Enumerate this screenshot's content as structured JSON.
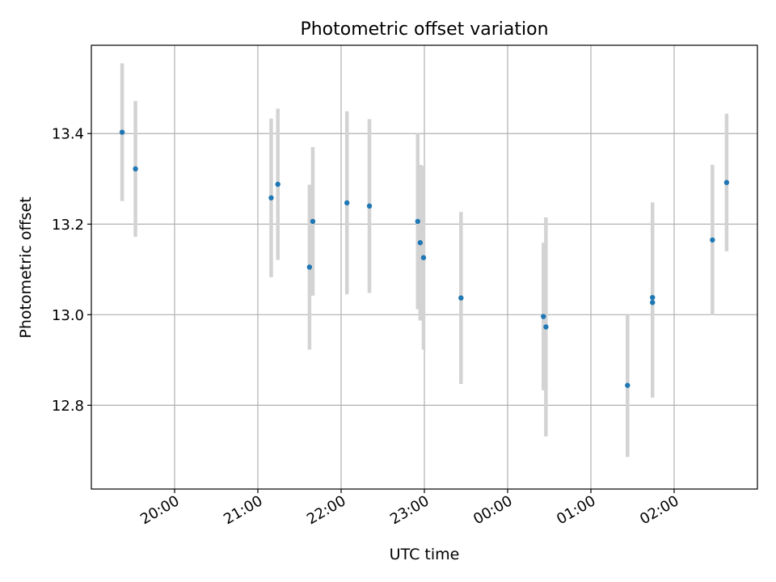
{
  "colors": {
    "point": "#1f77b4",
    "errorbar": "#d3d3d3",
    "grid": "#b0b0b0",
    "axes": "#000000"
  },
  "chart_data": {
    "type": "scatter",
    "title": "Photometric offset variation",
    "xlabel": "UTC time",
    "ylabel": "Photometric offset",
    "x_unit": "hours since 19:00 UTC",
    "xlim": [
      0.0,
      8.0
    ],
    "ylim": [
      12.615,
      13.595
    ],
    "grid": true,
    "x_ticks": [
      {
        "value": 1.0,
        "label": "20:00"
      },
      {
        "value": 2.0,
        "label": "21:00"
      },
      {
        "value": 3.0,
        "label": "22:00"
      },
      {
        "value": 4.0,
        "label": "23:00"
      },
      {
        "value": 5.0,
        "label": "00:00"
      },
      {
        "value": 6.0,
        "label": "01:00"
      },
      {
        "value": 7.0,
        "label": "02:00"
      }
    ],
    "y_ticks": [
      {
        "value": 12.8,
        "label": "12.8"
      },
      {
        "value": 13.0,
        "label": "13.0"
      },
      {
        "value": 13.2,
        "label": "13.2"
      },
      {
        "value": 13.4,
        "label": "13.4"
      }
    ],
    "series": [
      {
        "points": [
          {
            "x": 0.37,
            "y": 13.403,
            "err": 0.152
          },
          {
            "x": 0.53,
            "y": 13.322,
            "err": 0.15
          },
          {
            "x": 2.16,
            "y": 13.258,
            "err": 0.175
          },
          {
            "x": 2.24,
            "y": 13.288,
            "err": 0.167
          },
          {
            "x": 2.62,
            "y": 13.105,
            "err": 0.182
          },
          {
            "x": 2.66,
            "y": 13.206,
            "err": 0.164
          },
          {
            "x": 3.07,
            "y": 13.247,
            "err": 0.202
          },
          {
            "x": 3.34,
            "y": 13.24,
            "err": 0.192
          },
          {
            "x": 3.92,
            "y": 13.206,
            "err": 0.194
          },
          {
            "x": 3.95,
            "y": 13.159,
            "err": 0.172
          },
          {
            "x": 3.99,
            "y": 13.126,
            "err": 0.203
          },
          {
            "x": 4.44,
            "y": 13.037,
            "err": 0.19
          },
          {
            "x": 5.43,
            "y": 12.996,
            "err": 0.163
          },
          {
            "x": 5.46,
            "y": 12.973,
            "err": 0.242
          },
          {
            "x": 6.44,
            "y": 12.844,
            "err": 0.158
          },
          {
            "x": 6.74,
            "y": 13.038,
            "err": 0.21
          },
          {
            "x": 6.74,
            "y": 13.027,
            "err": 0.21
          },
          {
            "x": 7.46,
            "y": 13.165,
            "err": 0.166
          },
          {
            "x": 7.63,
            "y": 13.292,
            "err": 0.152
          }
        ]
      }
    ]
  }
}
